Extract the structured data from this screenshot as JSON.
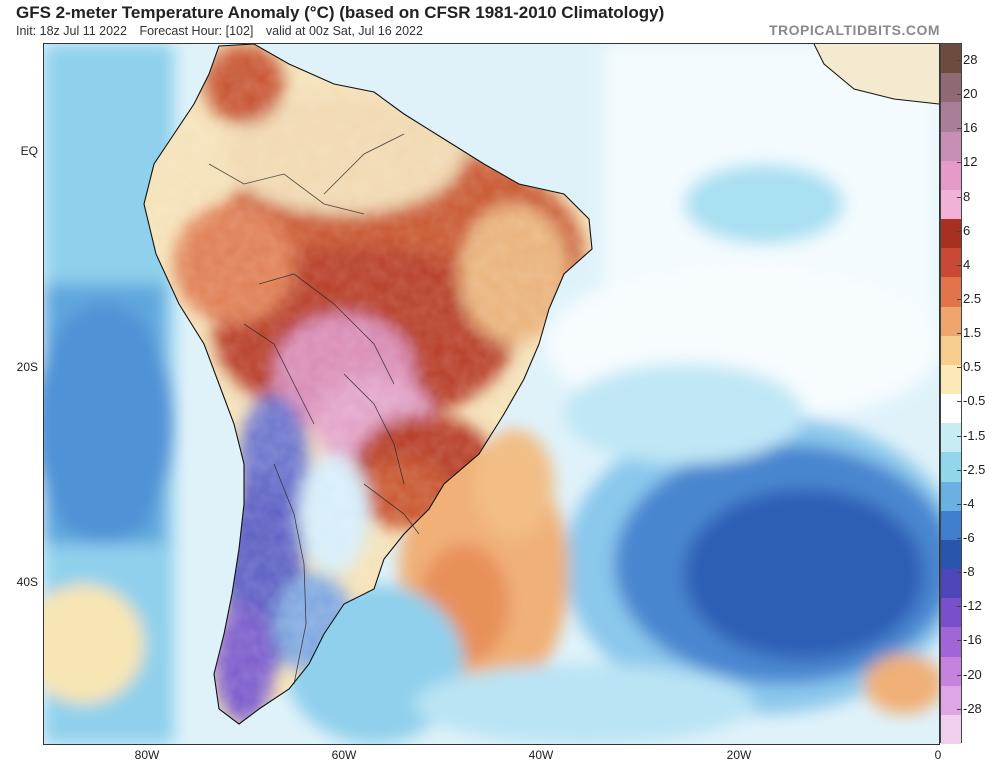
{
  "header": {
    "title": "GFS 2-meter Temperature Anomaly (°C) (based on CFSR 1981-2010 Climatology)",
    "init": "Init: 18z Jul 11 2022",
    "forecast_hour": "Forecast Hour: [102]",
    "valid": "valid at 00z Sat, Jul 16 2022",
    "brand": "TROPICALTIDBITS.COM"
  },
  "map": {
    "lat_labels": [
      "EQ",
      "20S",
      "40S"
    ],
    "lon_labels": [
      "80W",
      "60W",
      "40W",
      "20W",
      "0"
    ]
  },
  "colorbar": {
    "labels": [
      "28",
      "20",
      "16",
      "12",
      "8",
      "6",
      "4",
      "2.5",
      "1.5",
      "0.5",
      "-0.5",
      "-1.5",
      "-2.5",
      "-4",
      "-6",
      "-8",
      "-12",
      "-16",
      "-20",
      "-28"
    ],
    "colors": [
      "#6e4b3f",
      "#8f6a73",
      "#a97f95",
      "#c88fb4",
      "#e59bc9",
      "#f2b2d7",
      "#a83020",
      "#c94a34",
      "#e2744c",
      "#efa56c",
      "#f7cd8e",
      "#fbe9b8",
      "#ffffff",
      "#c7ecf3",
      "#92d6ec",
      "#6bb0e3",
      "#3f7fcd",
      "#2a55ad",
      "#4d46b9",
      "#7a4fcc",
      "#a065d6",
      "#c683de",
      "#dfa6e6",
      "#f0cfee"
    ]
  }
}
